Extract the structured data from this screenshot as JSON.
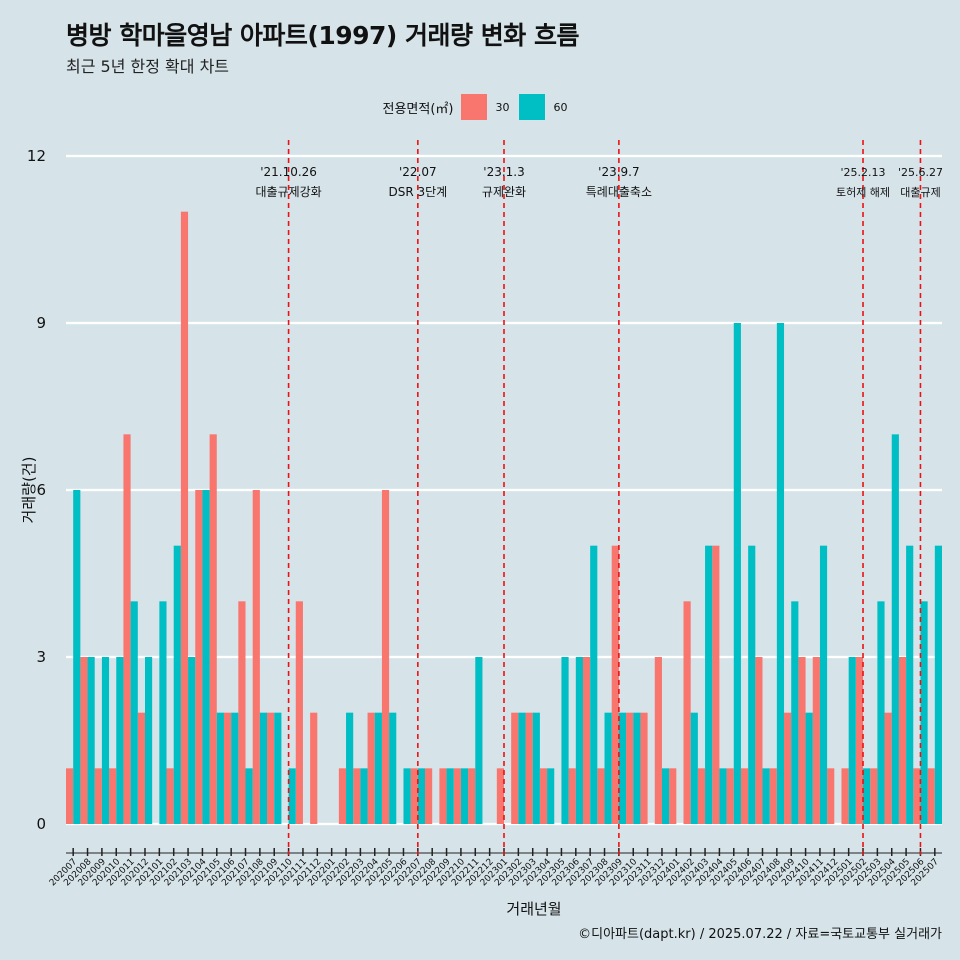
{
  "chart_data": {
    "type": "bar",
    "title": "병방 학마을영남 아파트(1997) 거래량 변화 흐름",
    "subtitle": "최근 5년 한정 확대 차트",
    "xlabel": "거래년월",
    "ylabel": "거래량(건)",
    "ylim": [
      0,
      12
    ],
    "yticks": [
      0,
      3,
      6,
      9,
      12
    ],
    "legend": {
      "title": "전용면적(㎡)",
      "placement": "top",
      "entries": [
        {
          "name": "30",
          "color": "#f8766d"
        },
        {
          "name": "60",
          "color": "#00bfc4"
        }
      ]
    },
    "categories": [
      "202007",
      "202008",
      "202009",
      "202010",
      "202011",
      "202012",
      "202101",
      "202102",
      "202103",
      "202104",
      "202105",
      "202106",
      "202107",
      "202108",
      "202109",
      "202110",
      "202111",
      "202112",
      "202201",
      "202202",
      "202203",
      "202204",
      "202205",
      "202206",
      "202207",
      "202208",
      "202209",
      "202210",
      "202211",
      "202212",
      "202301",
      "202302",
      "202303",
      "202304",
      "202305",
      "202306",
      "202307",
      "202308",
      "202309",
      "202310",
      "202311",
      "202312",
      "202401",
      "202402",
      "202403",
      "202404",
      "202405",
      "202406",
      "202407",
      "202408",
      "202409",
      "202410",
      "202411",
      "202412",
      "202501",
      "202502",
      "202503",
      "202504",
      "202505",
      "202506",
      "202507"
    ],
    "series": [
      {
        "name": "30",
        "color": "#f8766d",
        "values": [
          1,
          3,
          1,
          1,
          7,
          2,
          0,
          1,
          11,
          6,
          7,
          2,
          4,
          6,
          2,
          0,
          4,
          2,
          0,
          1,
          1,
          2,
          6,
          0,
          1,
          1,
          1,
          1,
          1,
          0,
          1,
          2,
          2,
          1,
          0,
          1,
          3,
          1,
          5,
          2,
          2,
          3,
          1,
          4,
          1,
          5,
          1,
          1,
          3,
          1,
          2,
          3,
          3,
          1,
          1,
          3,
          1,
          2,
          3,
          1,
          1
        ]
      },
      {
        "name": "60",
        "color": "#00bfc4",
        "values": [
          6,
          3,
          3,
          3,
          4,
          3,
          4,
          5,
          3,
          6,
          2,
          2,
          1,
          2,
          2,
          1,
          0,
          0,
          0,
          2,
          1,
          2,
          2,
          1,
          1,
          0,
          1,
          1,
          3,
          0,
          0,
          2,
          2,
          1,
          3,
          3,
          5,
          2,
          2,
          2,
          0,
          1,
          0,
          2,
          5,
          1,
          9,
          5,
          1,
          9,
          4,
          2,
          5,
          0,
          3,
          1,
          4,
          7,
          5,
          4,
          5
        ]
      }
    ],
    "events": [
      {
        "date": "'21.10.26",
        "label": "대출규제강화",
        "at": "202110"
      },
      {
        "date": "'22.07",
        "label": "DSR 3단계",
        "at": "202207"
      },
      {
        "date": "'23.1.3",
        "label": "규제완화",
        "at": "202301"
      },
      {
        "date": "'23.9.7",
        "label": "특례대출축소",
        "at": "202309"
      },
      {
        "date": "'25.2.13",
        "label": "토허제 해제",
        "at": "202502"
      },
      {
        "date": "'25.6.27",
        "label": "대출규제",
        "at": "202506"
      }
    ],
    "event_line_color": "#ee1111"
  },
  "caption": "©디아파트(dapt.kr) / 2025.07.22 / 자료=국토교통부 실거래가"
}
